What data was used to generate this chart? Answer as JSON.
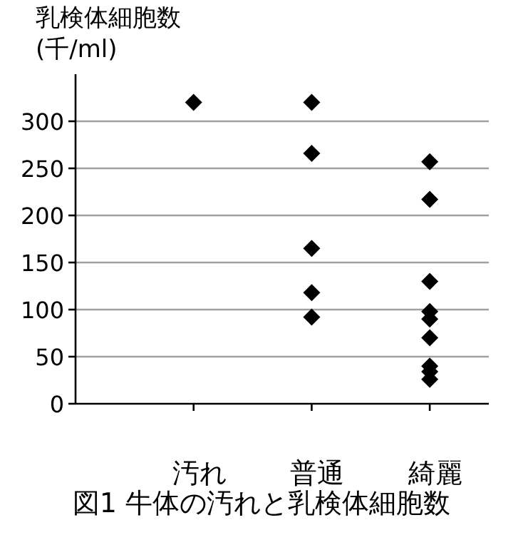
{
  "chart_data": {
    "type": "scatter",
    "title": "図1 牛体の汚れと乳検体細胞数",
    "ylabel": "乳検体細胞数(千/ml)",
    "categories": [
      "汚れ",
      "普通",
      "綺麗"
    ],
    "series": [
      {
        "color": "#000000",
        "x": [
          "汚れ",
          "普通",
          "普通",
          "普通",
          "普通",
          "普通",
          "綺麗",
          "綺麗",
          "綺麗",
          "綺麗",
          "綺麗",
          "綺麗",
          "綺麗",
          "綺麗",
          "綺麗"
        ],
        "values": [
          320,
          320,
          266,
          165,
          118,
          92,
          257,
          217,
          130,
          98,
          90,
          70,
          40,
          34,
          26
        ]
      }
    ],
    "ylim": [
      0,
      350
    ],
    "yticks": [
      0,
      50,
      100,
      150,
      200,
      250,
      300
    ],
    "grid": "y",
    "marker": "diamond"
  }
}
